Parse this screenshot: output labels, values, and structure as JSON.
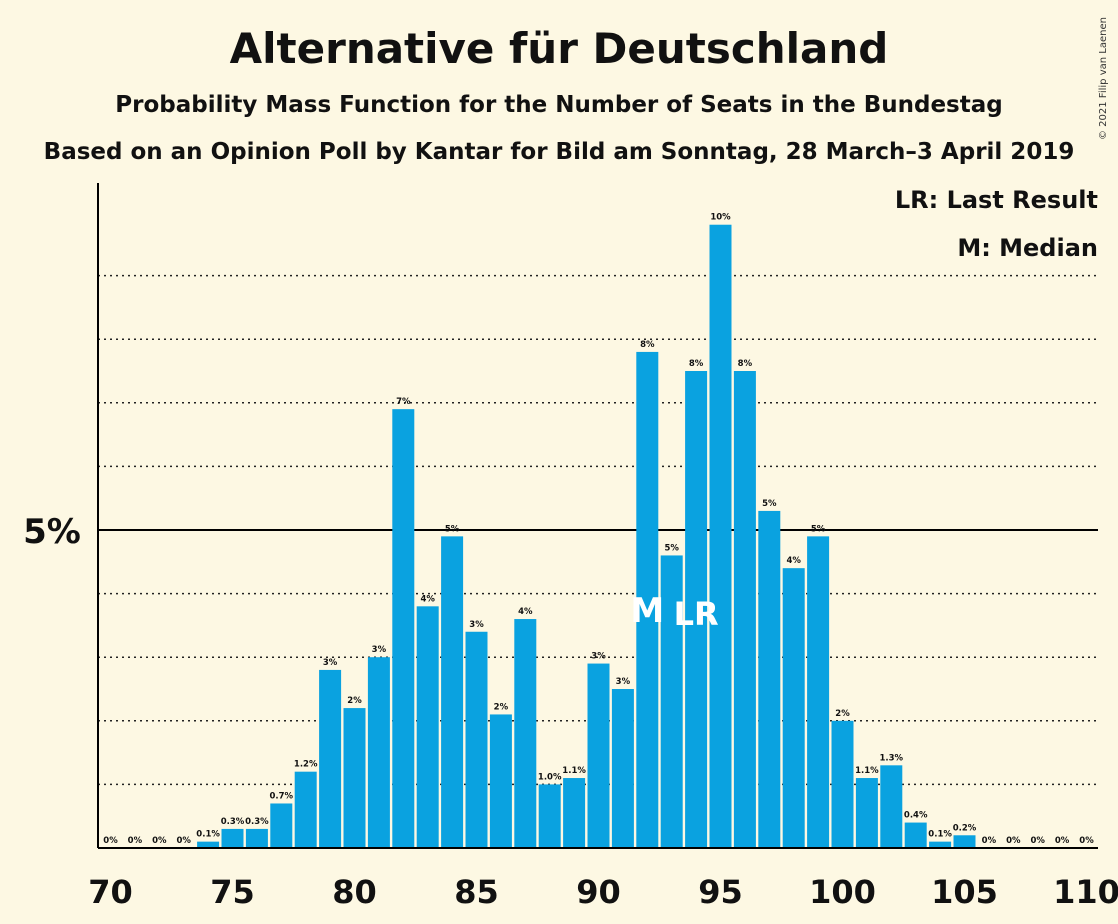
{
  "title": "Alternative für Deutschland",
  "subtitle": "Probability Mass Function for the Number of Seats in the Bundestag",
  "subtitle2": "Based on an Opinion Poll by Kantar for Bild am Sonntag, 28 March–3 April 2019",
  "copyright": "© 2021 Filip van Laenen",
  "legend": {
    "last_result": "LR: Last Result",
    "median": "M: Median"
  },
  "colors": {
    "bar": "#0aa2e0",
    "background": "#fdf8e3",
    "axis": "#000000"
  },
  "chart_data": {
    "type": "bar",
    "x": [
      70,
      71,
      72,
      73,
      74,
      75,
      76,
      77,
      78,
      79,
      80,
      81,
      82,
      83,
      84,
      85,
      86,
      87,
      88,
      89,
      90,
      91,
      92,
      93,
      94,
      95,
      96,
      97,
      98,
      99,
      100,
      101,
      102,
      103,
      104,
      105,
      106,
      107,
      108,
      109,
      110
    ],
    "values": [
      0,
      0,
      0,
      0,
      0.1,
      0.3,
      0.3,
      0.7,
      1.2,
      2.8,
      2.2,
      3.0,
      6.9,
      3.8,
      4.9,
      3.4,
      2.1,
      3.6,
      1.0,
      1.1,
      2.9,
      2.5,
      7.8,
      4.6,
      7.5,
      9.8,
      7.5,
      5.3,
      4.4,
      4.9,
      2.0,
      1.1,
      1.3,
      0.4,
      0.1,
      0.2,
      0,
      0,
      0,
      0,
      0
    ],
    "labels": [
      "0%",
      "0%",
      "0%",
      "0%",
      "0.1%",
      "0.3%",
      "0.3%",
      "0.7%",
      "1.2%",
      "3%",
      "2%",
      "3%",
      "7%",
      "4%",
      "5%",
      "3%",
      "2%",
      "4%",
      "1.0%",
      "1.1%",
      "3%",
      "3%",
      "8%",
      "5%",
      "8%",
      "10%",
      "8%",
      "5%",
      "4%",
      "5%",
      "2%",
      "1.1%",
      "1.3%",
      "0.4%",
      "0.1%",
      "0.2%",
      "0%",
      "0%",
      "0%",
      "0%",
      "0%"
    ],
    "x_ticks": [
      "70",
      "75",
      "80",
      "85",
      "90",
      "95",
      "100",
      "105",
      "110"
    ],
    "y_ticks": [
      "5%"
    ],
    "ylim": [
      0,
      10.5
    ],
    "gridlines": [
      1,
      2,
      3,
      4,
      6,
      7,
      8,
      9
    ],
    "median": 92,
    "median_label": "M",
    "last_result": 94,
    "last_result_label": "LR"
  }
}
